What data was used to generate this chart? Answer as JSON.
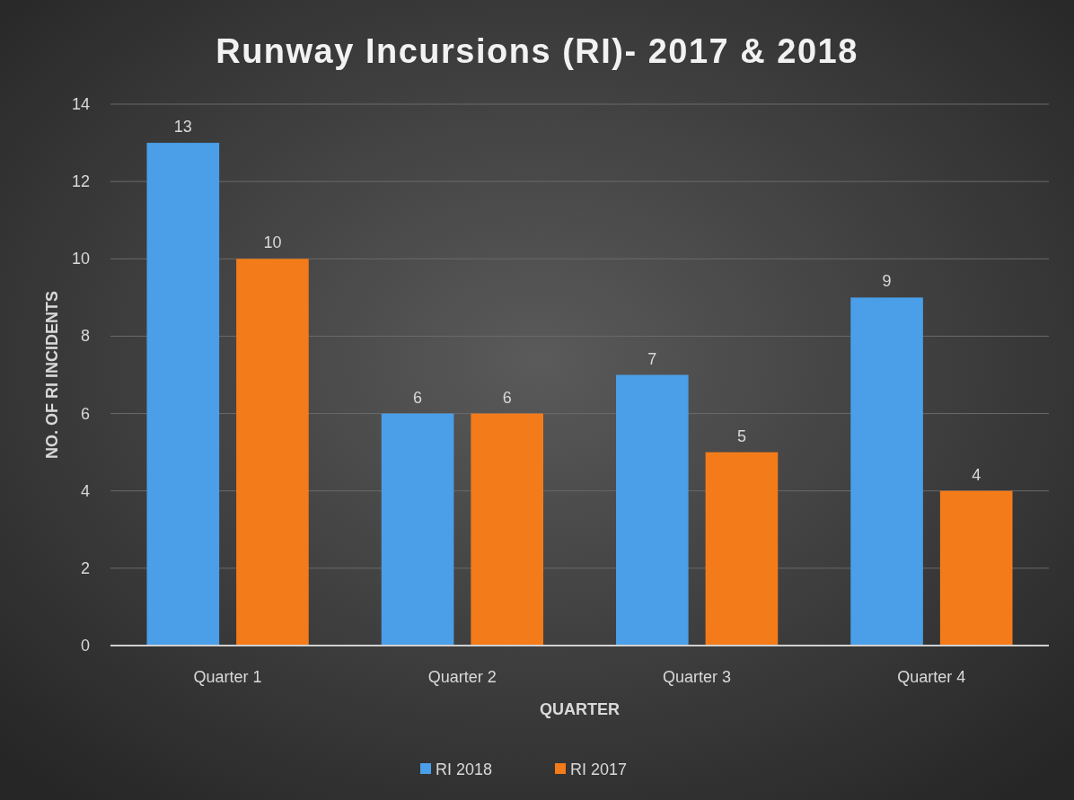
{
  "chart_data": {
    "type": "bar",
    "title": "Runway Incursions (RI)- 2017 & 2018",
    "xlabel": "QUARTER",
    "ylabel": "NO. OF RI INCIDENTS",
    "categories": [
      "Quarter 1",
      "Quarter 2",
      "Quarter 3",
      "Quarter 4"
    ],
    "series": [
      {
        "name": "RI 2018",
        "color": "#4a9fe8",
        "values": [
          13,
          6,
          7,
          9
        ]
      },
      {
        "name": "RI 2017",
        "color": "#f47b1a",
        "values": [
          10,
          6,
          5,
          4
        ]
      }
    ],
    "ylim": [
      0,
      14
    ],
    "yticks": [
      0,
      2,
      4,
      6,
      8,
      10,
      12,
      14
    ],
    "grid": "y",
    "legend": "bottom",
    "data_labels": true
  }
}
